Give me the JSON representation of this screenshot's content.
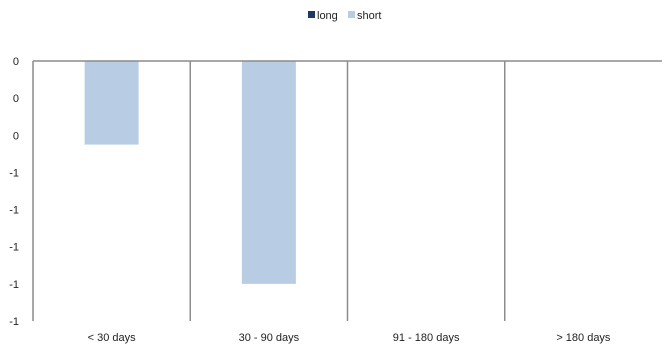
{
  "chart_data": {
    "type": "bar",
    "categories": [
      "< 30 days",
      "30 - 90 days",
      "91 - 180 days",
      "> 180 days"
    ],
    "series": [
      {
        "name": "long",
        "color": "#1f3864",
        "values": [
          0,
          0,
          0,
          0
        ]
      },
      {
        "name": "short",
        "color": "#b8cce4",
        "values": [
          -0.45,
          -1.2,
          0,
          0
        ]
      }
    ],
    "y_tick_labels": [
      "0",
      "0",
      "0",
      "-1",
      "-1",
      "-1",
      "-1",
      "-1"
    ],
    "ylim": [
      -1.4,
      0
    ],
    "grid": false,
    "legend_position": "top-center",
    "title": "",
    "xlabel": "",
    "ylabel": ""
  }
}
